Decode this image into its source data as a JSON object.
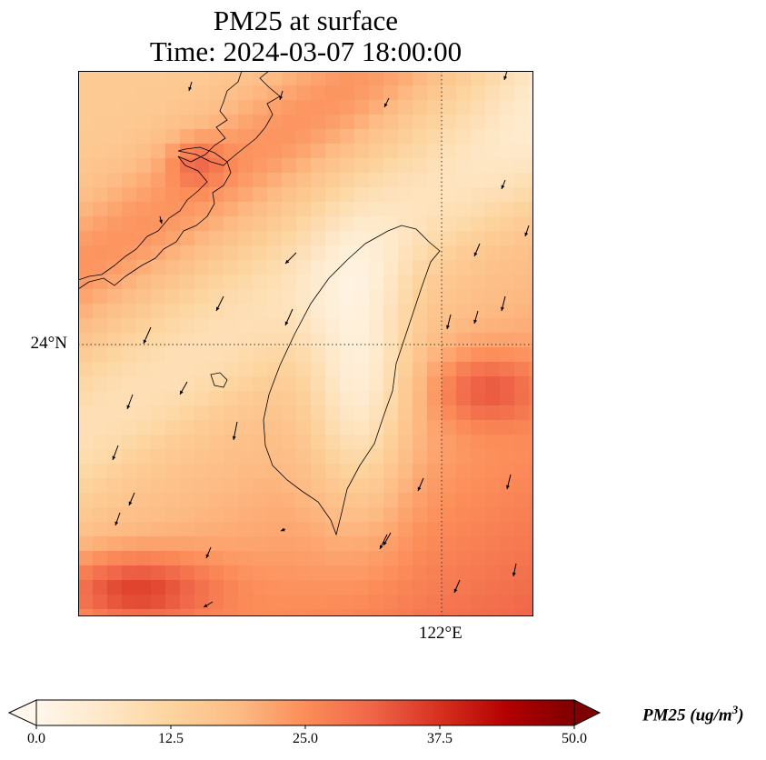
{
  "title": {
    "line1": "PM25 at surface",
    "line2": "Time: 2024-03-07 18:00:00"
  },
  "axes": {
    "lat_label": "24°N",
    "lon_label": "122°E",
    "gridlines": "dotted"
  },
  "colorbar": {
    "label_main": "PM25 (ug/m",
    "label_exp": "3",
    "label_end": ")",
    "ticks": [
      "0.0",
      "12.5",
      "25.0",
      "37.5",
      "50.0"
    ],
    "range": [
      0,
      50
    ],
    "extend": "both",
    "colormap": "OrRd",
    "colors": [
      "#fff7ec",
      "#fee8c8",
      "#fdd49e",
      "#fdbb84",
      "#fc8d59",
      "#ef6548",
      "#d7301f",
      "#b30000",
      "#7f0000"
    ]
  },
  "map": {
    "region": "Taiwan Strait",
    "features": [
      "coastline",
      "wind-vectors",
      "pm25-grid"
    ]
  }
}
